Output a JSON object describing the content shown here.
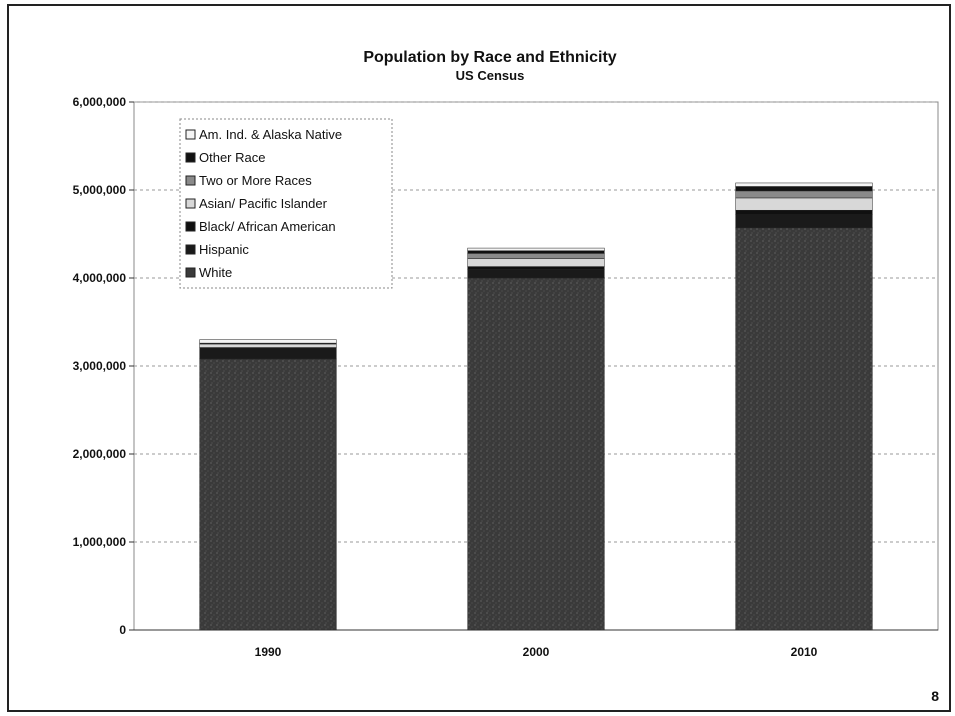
{
  "chart_data": {
    "type": "bar",
    "stacked": true,
    "title": "Population by Race and Ethnicity",
    "subtitle": "US Census",
    "categories": [
      "1990",
      "2000",
      "2010"
    ],
    "ylim": [
      0,
      6000000
    ],
    "yticks": [
      "0",
      "1,000,000",
      "2,000,000",
      "3,000,000",
      "4,000,000",
      "5,000,000",
      "6,000,000"
    ],
    "ytick_values": [
      0,
      1000000,
      2000000,
      3000000,
      4000000,
      5000000,
      6000000
    ],
    "grid": true,
    "legend_position": "top-left",
    "series": [
      {
        "name": "White",
        "values": [
          3080000,
          4000000,
          4570000
        ],
        "color": "#3a3a3a"
      },
      {
        "name": "Hispanic",
        "values": [
          130000,
          100000,
          150000
        ],
        "color": "#1a1a1a"
      },
      {
        "name": "Black/ African American",
        "values": [
          0,
          30000,
          50000
        ],
        "color": "#101010"
      },
      {
        "name": "Asian/ Pacific Islander",
        "values": [
          40000,
          90000,
          140000
        ],
        "color": "#d8d8d8"
      },
      {
        "name": "Two or More Races",
        "values": [
          0,
          60000,
          80000
        ],
        "color": "#8a8a8a"
      },
      {
        "name": "Other Race",
        "values": [
          10000,
          30000,
          50000
        ],
        "color": "#111111"
      },
      {
        "name": "Am. Ind. & Alaska Native",
        "values": [
          40000,
          30000,
          40000
        ],
        "color": "#f4f4f4"
      }
    ]
  },
  "legend_order": [
    6,
    5,
    4,
    3,
    2,
    1,
    0
  ],
  "page_number": "8"
}
